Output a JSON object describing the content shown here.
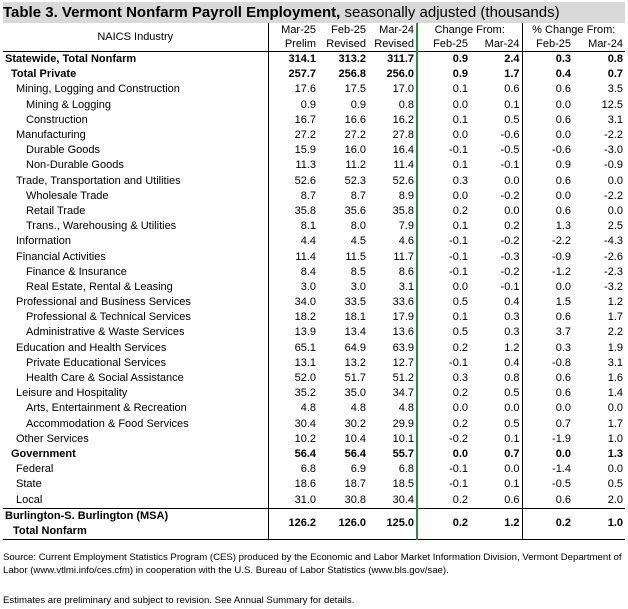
{
  "title": {
    "bold": "Table 3.  Vermont Nonfarm Payroll Employment,",
    "rest": " seasonally adjusted  (thousands)"
  },
  "header": {
    "industry": "NAICS Industry",
    "col1_top": "Mar-25",
    "col1_bot": "Prelim",
    "col2_top": "Feb-25",
    "col2_bot": "Revised",
    "col3_top": "Mar-24",
    "col3_bot": "Revised",
    "change_from": "Change From:",
    "pct_change_from": "% Change From:",
    "chg_feb": "Feb-25",
    "chg_mar": "Mar-24",
    "pct_feb": "Feb-25",
    "pct_mar": "Mar-24"
  },
  "rows": [
    {
      "label": "Statewide, Total Nonfarm",
      "level": 0,
      "bold": true,
      "v": [
        "314.1",
        "313.2",
        "311.7",
        "0.9",
        "2.4",
        "0.3",
        "0.8"
      ]
    },
    {
      "label": "Total Private",
      "level": 1,
      "bold": true,
      "v": [
        "257.7",
        "256.8",
        "256.0",
        "0.9",
        "1.7",
        "0.4",
        "0.7"
      ]
    },
    {
      "label": "Mining, Logging and Construction",
      "level": 1,
      "bold": false,
      "v": [
        "17.6",
        "17.5",
        "17.0",
        "0.1",
        "0.6",
        "0.6",
        "3.5"
      ]
    },
    {
      "label": "Mining & Logging",
      "level": 2,
      "bold": false,
      "v": [
        "0.9",
        "0.9",
        "0.8",
        "0.0",
        "0.1",
        "0.0",
        "12.5"
      ]
    },
    {
      "label": "Construction",
      "level": 2,
      "bold": false,
      "v": [
        "16.7",
        "16.6",
        "16.2",
        "0.1",
        "0.5",
        "0.6",
        "3.1"
      ]
    },
    {
      "label": "Manufacturing",
      "level": 1,
      "bold": false,
      "v": [
        "27.2",
        "27.2",
        "27.8",
        "0.0",
        "-0.6",
        "0.0",
        "-2.2"
      ]
    },
    {
      "label": "Durable Goods",
      "level": 2,
      "bold": false,
      "v": [
        "15.9",
        "16.0",
        "16.4",
        "-0.1",
        "-0.5",
        "-0.6",
        "-3.0"
      ]
    },
    {
      "label": "Non-Durable Goods",
      "level": 2,
      "bold": false,
      "v": [
        "11.3",
        "11.2",
        "11.4",
        "0.1",
        "-0.1",
        "0.9",
        "-0.9"
      ]
    },
    {
      "label": "Trade, Transportation and Utilities",
      "level": 1,
      "bold": false,
      "v": [
        "52.6",
        "52.3",
        "52.6",
        "0.3",
        "0.0",
        "0.6",
        "0.0"
      ]
    },
    {
      "label": "Wholesale Trade",
      "level": 2,
      "bold": false,
      "v": [
        "8.7",
        "8.7",
        "8.9",
        "0.0",
        "-0.2",
        "0.0",
        "-2.2"
      ]
    },
    {
      "label": "Retail Trade",
      "level": 2,
      "bold": false,
      "v": [
        "35.8",
        "35.6",
        "35.8",
        "0.2",
        "0.0",
        "0.6",
        "0.0"
      ]
    },
    {
      "label": "Trans., Warehousing & Utilities",
      "level": 2,
      "bold": false,
      "v": [
        "8.1",
        "8.0",
        "7.9",
        "0.1",
        "0.2",
        "1.3",
        "2.5"
      ]
    },
    {
      "label": "Information",
      "level": 1,
      "bold": false,
      "v": [
        "4.4",
        "4.5",
        "4.6",
        "-0.1",
        "-0.2",
        "-2.2",
        "-4.3"
      ]
    },
    {
      "label": "Financial Activities",
      "level": 1,
      "bold": false,
      "v": [
        "11.4",
        "11.5",
        "11.7",
        "-0.1",
        "-0.3",
        "-0.9",
        "-2.6"
      ]
    },
    {
      "label": "Finance & Insurance",
      "level": 2,
      "bold": false,
      "v": [
        "8.4",
        "8.5",
        "8.6",
        "-0.1",
        "-0.2",
        "-1.2",
        "-2.3"
      ]
    },
    {
      "label": "Real Estate, Rental & Leasing",
      "level": 2,
      "bold": false,
      "v": [
        "3.0",
        "3.0",
        "3.1",
        "0.0",
        "-0.1",
        "0.0",
        "-3.2"
      ]
    },
    {
      "label": "Professional and Business Services",
      "level": 1,
      "bold": false,
      "v": [
        "34.0",
        "33.5",
        "33.6",
        "0.5",
        "0.4",
        "1.5",
        "1.2"
      ]
    },
    {
      "label": "Professional & Technical Services",
      "level": 2,
      "bold": false,
      "v": [
        "18.2",
        "18.1",
        "17.9",
        "0.1",
        "0.3",
        "0.6",
        "1.7"
      ]
    },
    {
      "label": "Administrative & Waste Services",
      "level": 2,
      "bold": false,
      "v": [
        "13.9",
        "13.4",
        "13.6",
        "0.5",
        "0.3",
        "3.7",
        "2.2"
      ]
    },
    {
      "label": "Education and Health Services",
      "level": 1,
      "bold": false,
      "v": [
        "65.1",
        "64.9",
        "63.9",
        "0.2",
        "1.2",
        "0.3",
        "1.9"
      ]
    },
    {
      "label": "Private Educational Services",
      "level": 2,
      "bold": false,
      "v": [
        "13.1",
        "13.2",
        "12.7",
        "-0.1",
        "0.4",
        "-0.8",
        "3.1"
      ]
    },
    {
      "label": "Health Care & Social Assistance",
      "level": 2,
      "bold": false,
      "v": [
        "52.0",
        "51.7",
        "51.2",
        "0.3",
        "0.8",
        "0.6",
        "1.6"
      ]
    },
    {
      "label": "Leisure and Hospitality",
      "level": 1,
      "bold": false,
      "v": [
        "35.2",
        "35.0",
        "34.7",
        "0.2",
        "0.5",
        "0.6",
        "1.4"
      ]
    },
    {
      "label": "Arts, Entertainment & Recreation",
      "level": 2,
      "bold": false,
      "v": [
        "4.8",
        "4.8",
        "4.8",
        "0.0",
        "0.0",
        "0.0",
        "0.0"
      ]
    },
    {
      "label": "Accommodation & Food Services",
      "level": 2,
      "bold": false,
      "v": [
        "30.4",
        "30.2",
        "29.9",
        "0.2",
        "0.5",
        "0.7",
        "1.7"
      ]
    },
    {
      "label": "Other Services",
      "level": 1,
      "bold": false,
      "v": [
        "10.2",
        "10.4",
        "10.1",
        "-0.2",
        "0.1",
        "-1.9",
        "1.0"
      ]
    },
    {
      "label": "Government",
      "level": 1,
      "bold": true,
      "v": [
        "56.4",
        "56.4",
        "55.7",
        "0.0",
        "0.7",
        "0.0",
        "1.3"
      ]
    },
    {
      "label": "Federal",
      "level": 1,
      "bold": false,
      "v": [
        "6.8",
        "6.9",
        "6.8",
        "-0.1",
        "0.0",
        "-1.4",
        "0.0"
      ]
    },
    {
      "label": "State",
      "level": 1,
      "bold": false,
      "v": [
        "18.6",
        "18.7",
        "18.5",
        "-0.1",
        "0.1",
        "-0.5",
        "0.5"
      ]
    },
    {
      "label": "Local",
      "level": 1,
      "bold": false,
      "v": [
        "31.0",
        "30.8",
        "30.4",
        "0.2",
        "0.6",
        "0.6",
        "2.0"
      ]
    }
  ],
  "msa": {
    "line1": "Burlington-S. Burlington (MSA)",
    "line2": "Total Nonfarm",
    "v": [
      "126.2",
      "126.0",
      "125.0",
      "0.2",
      "1.2",
      "0.2",
      "1.0"
    ]
  },
  "source": "Source: Current Employment Statistics Program (CES) produced by the Economic and Labor Market Information Division, Vermont Department of Labor (www.vtlmi.info/ces.cfm) in cooperation with the U.S. Bureau of Labor Statistics (www.bls.gov/sae).",
  "note": "Estimates are preliminary and subject to revision. See Annual Summary for details.",
  "colors": {
    "title_bg": "#d9d9d9",
    "divider_green": "#2e8b3e"
  }
}
